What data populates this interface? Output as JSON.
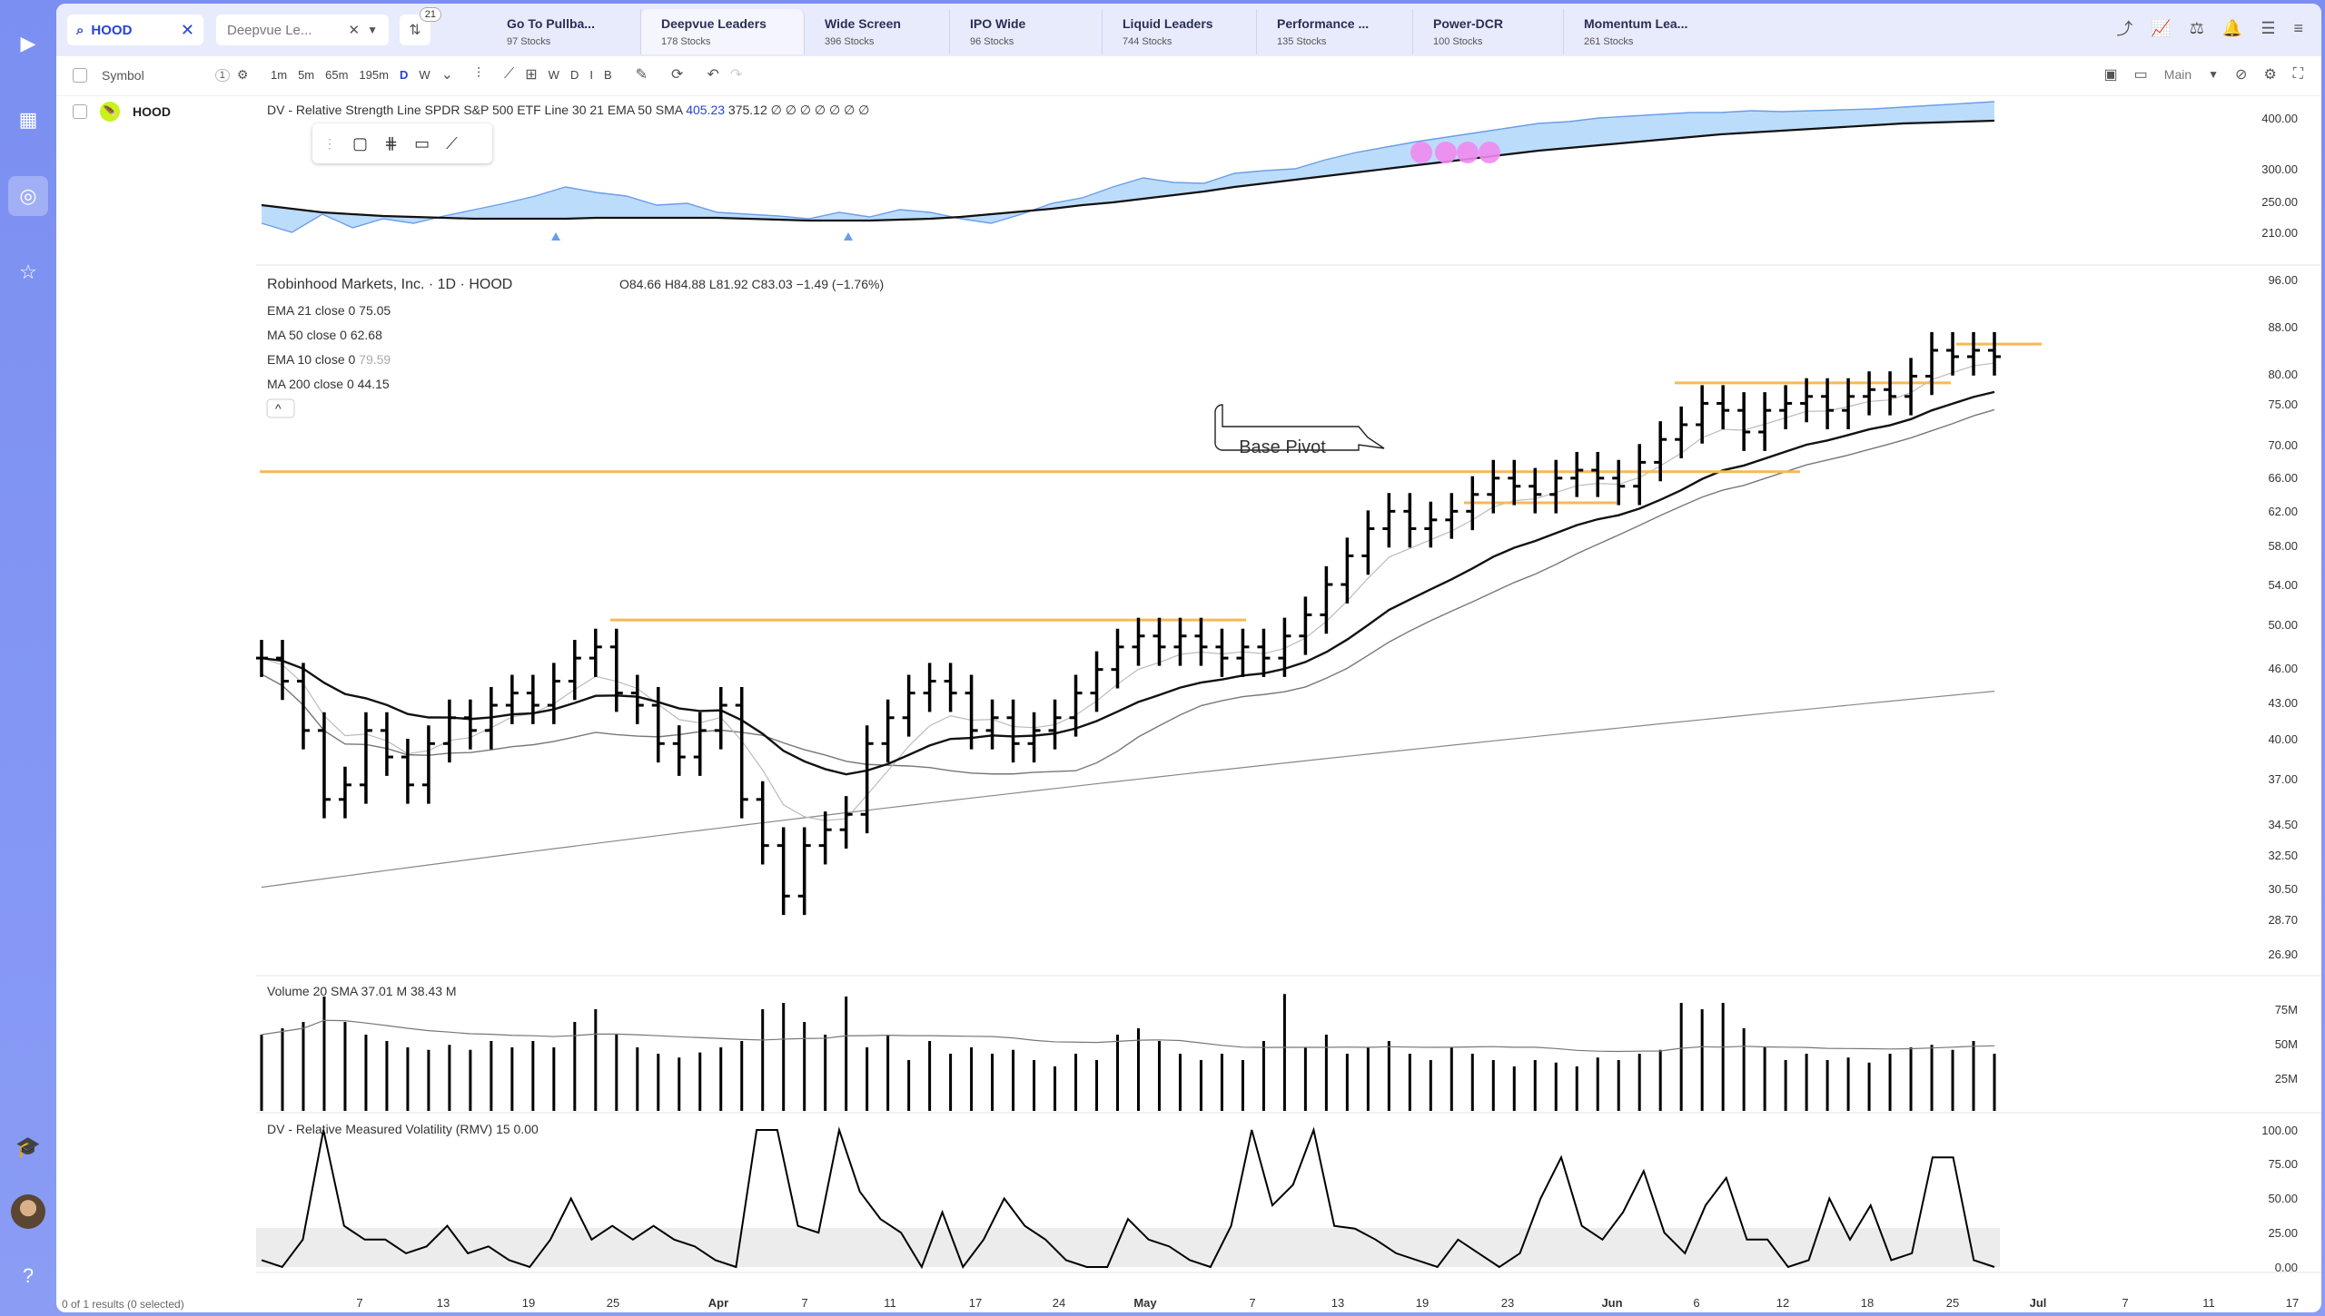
{
  "search": {
    "value": "HOOD"
  },
  "watchlist": {
    "value": "Deepvue Le..."
  },
  "filter_badge": "21",
  "tabs": [
    {
      "title": "Go To Pullba...",
      "sub": "97 Stocks"
    },
    {
      "title": "Deepvue Leaders",
      "sub": "178 Stocks"
    },
    {
      "title": "Wide Screen",
      "sub": "396 Stocks"
    },
    {
      "title": "IPO Wide",
      "sub": "96 Stocks"
    },
    {
      "title": "Liquid Leaders",
      "sub": "744 Stocks"
    },
    {
      "title": "Performance ...",
      "sub": "135 Stocks"
    },
    {
      "title": "Power-DCR",
      "sub": "100 Stocks"
    },
    {
      "title": "Momentum Lea...",
      "sub": "261 Stocks"
    }
  ],
  "toolbar": {
    "symbol_label": "Symbol",
    "symbol_count": "1",
    "intervals": [
      "1m",
      "5m",
      "65m",
      "195m",
      "D",
      "W"
    ],
    "active_interval": "D",
    "period_buttons": [
      "W",
      "D",
      "I",
      "B"
    ],
    "layout_label": "Main"
  },
  "symbol_row": {
    "ticker": "HOOD"
  },
  "footer": "0 of 1 results (0 selected)",
  "rs_pane": {
    "legend": "DV - Relative Strength Line SPDR S&P 500 ETF Line 30 21 EMA 50 SMA",
    "value1": "405.23",
    "value2": "375.12",
    "tail": "∅ ∅ ∅ ∅ ∅ ∅ ∅",
    "y_ticks": [
      "400.00",
      "300.00",
      "250.00",
      "210.00"
    ]
  },
  "price_pane": {
    "title": "Robinhood Markets, Inc. · 1D · HOOD",
    "ohlc": "O84.66  H84.88  L81.92  C83.03  −1.49 (−1.76%)",
    "indicators": [
      {
        "label": "EMA 21 close 0",
        "value": "75.05"
      },
      {
        "label": "MA 50 close 0",
        "value": "62.68"
      },
      {
        "label": "EMA 10 close 0",
        "value": "79.59"
      },
      {
        "label": "MA 200 close 0",
        "value": "44.15"
      }
    ],
    "annotation": "Base Pivot",
    "y_ticks": [
      "96.00",
      "88.00",
      "80.00",
      "75.00",
      "70.00",
      "66.00",
      "62.00",
      "58.00",
      "54.00",
      "50.00",
      "46.00",
      "43.00",
      "40.00",
      "37.00",
      "34.50",
      "32.50",
      "30.50",
      "28.70",
      "26.90"
    ]
  },
  "volume_pane": {
    "legend": "Volume 20 SMA",
    "value1": "37.01 M",
    "value2": "38.43 M",
    "y_ticks": [
      "75M",
      "50M",
      "25M"
    ]
  },
  "rmv_pane": {
    "legend": "DV - Relative Measured Volatility (RMV) 15",
    "value": "0.00",
    "y_ticks": [
      "100.00",
      "75.00",
      "50.00",
      "25.00",
      "0.00"
    ]
  },
  "x_axis": [
    "7",
    "13",
    "19",
    "25",
    "Apr",
    "7",
    "11",
    "17",
    "24",
    "May",
    "7",
    "13",
    "19",
    "23",
    "Jun",
    "6",
    "12",
    "18",
    "25",
    "Jul",
    "7",
    "11",
    "17"
  ],
  "chart_data": {
    "type": "ohlc",
    "ticker": "HOOD",
    "interval": "1D",
    "closes": [
      47,
      45,
      41,
      36,
      37,
      41,
      39,
      37,
      40,
      42,
      41,
      43,
      44,
      43,
      45,
      47,
      48,
      44,
      43,
      40,
      39,
      41,
      43,
      36,
      33,
      30,
      33,
      34,
      35,
      40,
      42,
      44,
      45,
      44,
      41,
      42,
      40,
      41,
      42,
      44,
      46,
      48,
      49,
      48,
      49,
      48,
      47,
      48,
      47,
      49,
      51,
      54,
      57,
      60,
      62,
      60,
      61,
      62,
      64,
      66,
      65,
      64,
      66,
      67,
      66,
      65,
      68,
      71,
      73,
      76,
      75,
      72,
      75,
      76,
      77,
      75,
      77,
      78,
      77,
      80,
      84,
      83,
      84,
      83
    ]
  }
}
